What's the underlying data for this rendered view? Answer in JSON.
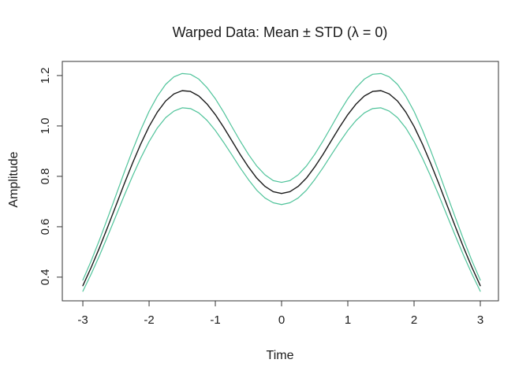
{
  "figure": {
    "title": "Warped Data: Mean ± STD (λ = 0)",
    "xlabel": "Time",
    "ylabel": "Amplitude"
  },
  "chart_data": {
    "type": "line",
    "title": "Warped Data: Mean ± STD (λ = 0)",
    "xlabel": "Time",
    "ylabel": "Amplitude",
    "xlim": [
      -3.31,
      3.274
    ],
    "ylim": [
      0.306,
      1.256
    ],
    "grid": false,
    "legend": "none",
    "background": "#ffffff",
    "box_color": "#333333",
    "tick_color": "#333333",
    "x_ticks": {
      "values": [
        -3,
        -2,
        -1,
        0,
        1,
        2,
        3
      ],
      "labels": [
        "-3",
        "-2",
        "-1",
        "0",
        "1",
        "2",
        "3"
      ]
    },
    "y_ticks": {
      "values": [
        0.4,
        0.6,
        0.8,
        1.0,
        1.2
      ],
      "labels": [
        "0.4",
        "0.6",
        "0.8",
        "1.0",
        "1.2"
      ]
    },
    "x": [
      -3,
      -2.875,
      -2.75,
      -2.625,
      -2.5,
      -2.375,
      -2.25,
      -2.125,
      -2,
      -1.875,
      -1.75,
      -1.625,
      -1.5,
      -1.375,
      -1.25,
      -1.125,
      -1,
      -0.875,
      -0.75,
      -0.625,
      -0.5,
      -0.375,
      -0.25,
      -0.125,
      0,
      0.125,
      0.25,
      0.375,
      0.5,
      0.625,
      0.75,
      0.875,
      1,
      1.125,
      1.25,
      1.375,
      1.5,
      1.625,
      1.75,
      1.875,
      2,
      2.125,
      2.25,
      2.375,
      2.5,
      2.625,
      2.75,
      2.875,
      3
    ],
    "series": [
      {
        "name": "mean",
        "color": "#1a1a1a",
        "width": 1.4,
        "values": [
          0.366,
          0.438,
          0.516,
          0.599,
          0.684,
          0.77,
          0.852,
          0.929,
          0.998,
          1.055,
          1.099,
          1.127,
          1.14,
          1.137,
          1.119,
          1.087,
          1.045,
          0.995,
          0.941,
          0.887,
          0.837,
          0.793,
          0.76,
          0.739,
          0.732,
          0.739,
          0.76,
          0.793,
          0.837,
          0.887,
          0.941,
          0.995,
          1.045,
          1.087,
          1.119,
          1.137,
          1.14,
          1.127,
          1.099,
          1.055,
          0.998,
          0.929,
          0.852,
          0.77,
          0.684,
          0.599,
          0.516,
          0.438,
          0.366
        ]
      },
      {
        "name": "mean-plus-std",
        "color": "#4fc39a",
        "width": 1.2,
        "values": [
          0.388,
          0.464,
          0.547,
          0.635,
          0.725,
          0.816,
          0.903,
          0.985,
          1.058,
          1.118,
          1.165,
          1.195,
          1.208,
          1.205,
          1.186,
          1.152,
          1.108,
          1.055,
          0.997,
          0.94,
          0.887,
          0.841,
          0.806,
          0.783,
          0.776,
          0.783,
          0.806,
          0.841,
          0.887,
          0.94,
          0.997,
          1.055,
          1.108,
          1.152,
          1.186,
          1.205,
          1.208,
          1.195,
          1.165,
          1.118,
          1.058,
          0.985,
          0.903,
          0.816,
          0.725,
          0.635,
          0.547,
          0.464,
          0.388
        ]
      },
      {
        "name": "mean-minus-std",
        "color": "#4fc39a",
        "width": 1.2,
        "values": [
          0.344,
          0.412,
          0.485,
          0.563,
          0.643,
          0.724,
          0.801,
          0.873,
          0.938,
          0.992,
          1.033,
          1.059,
          1.072,
          1.069,
          1.052,
          1.022,
          0.982,
          0.935,
          0.885,
          0.834,
          0.787,
          0.745,
          0.714,
          0.695,
          0.688,
          0.695,
          0.714,
          0.745,
          0.787,
          0.834,
          0.885,
          0.935,
          0.982,
          1.022,
          1.052,
          1.069,
          1.072,
          1.059,
          1.033,
          0.992,
          0.938,
          0.873,
          0.801,
          0.724,
          0.643,
          0.563,
          0.485,
          0.412,
          0.344
        ]
      }
    ]
  }
}
